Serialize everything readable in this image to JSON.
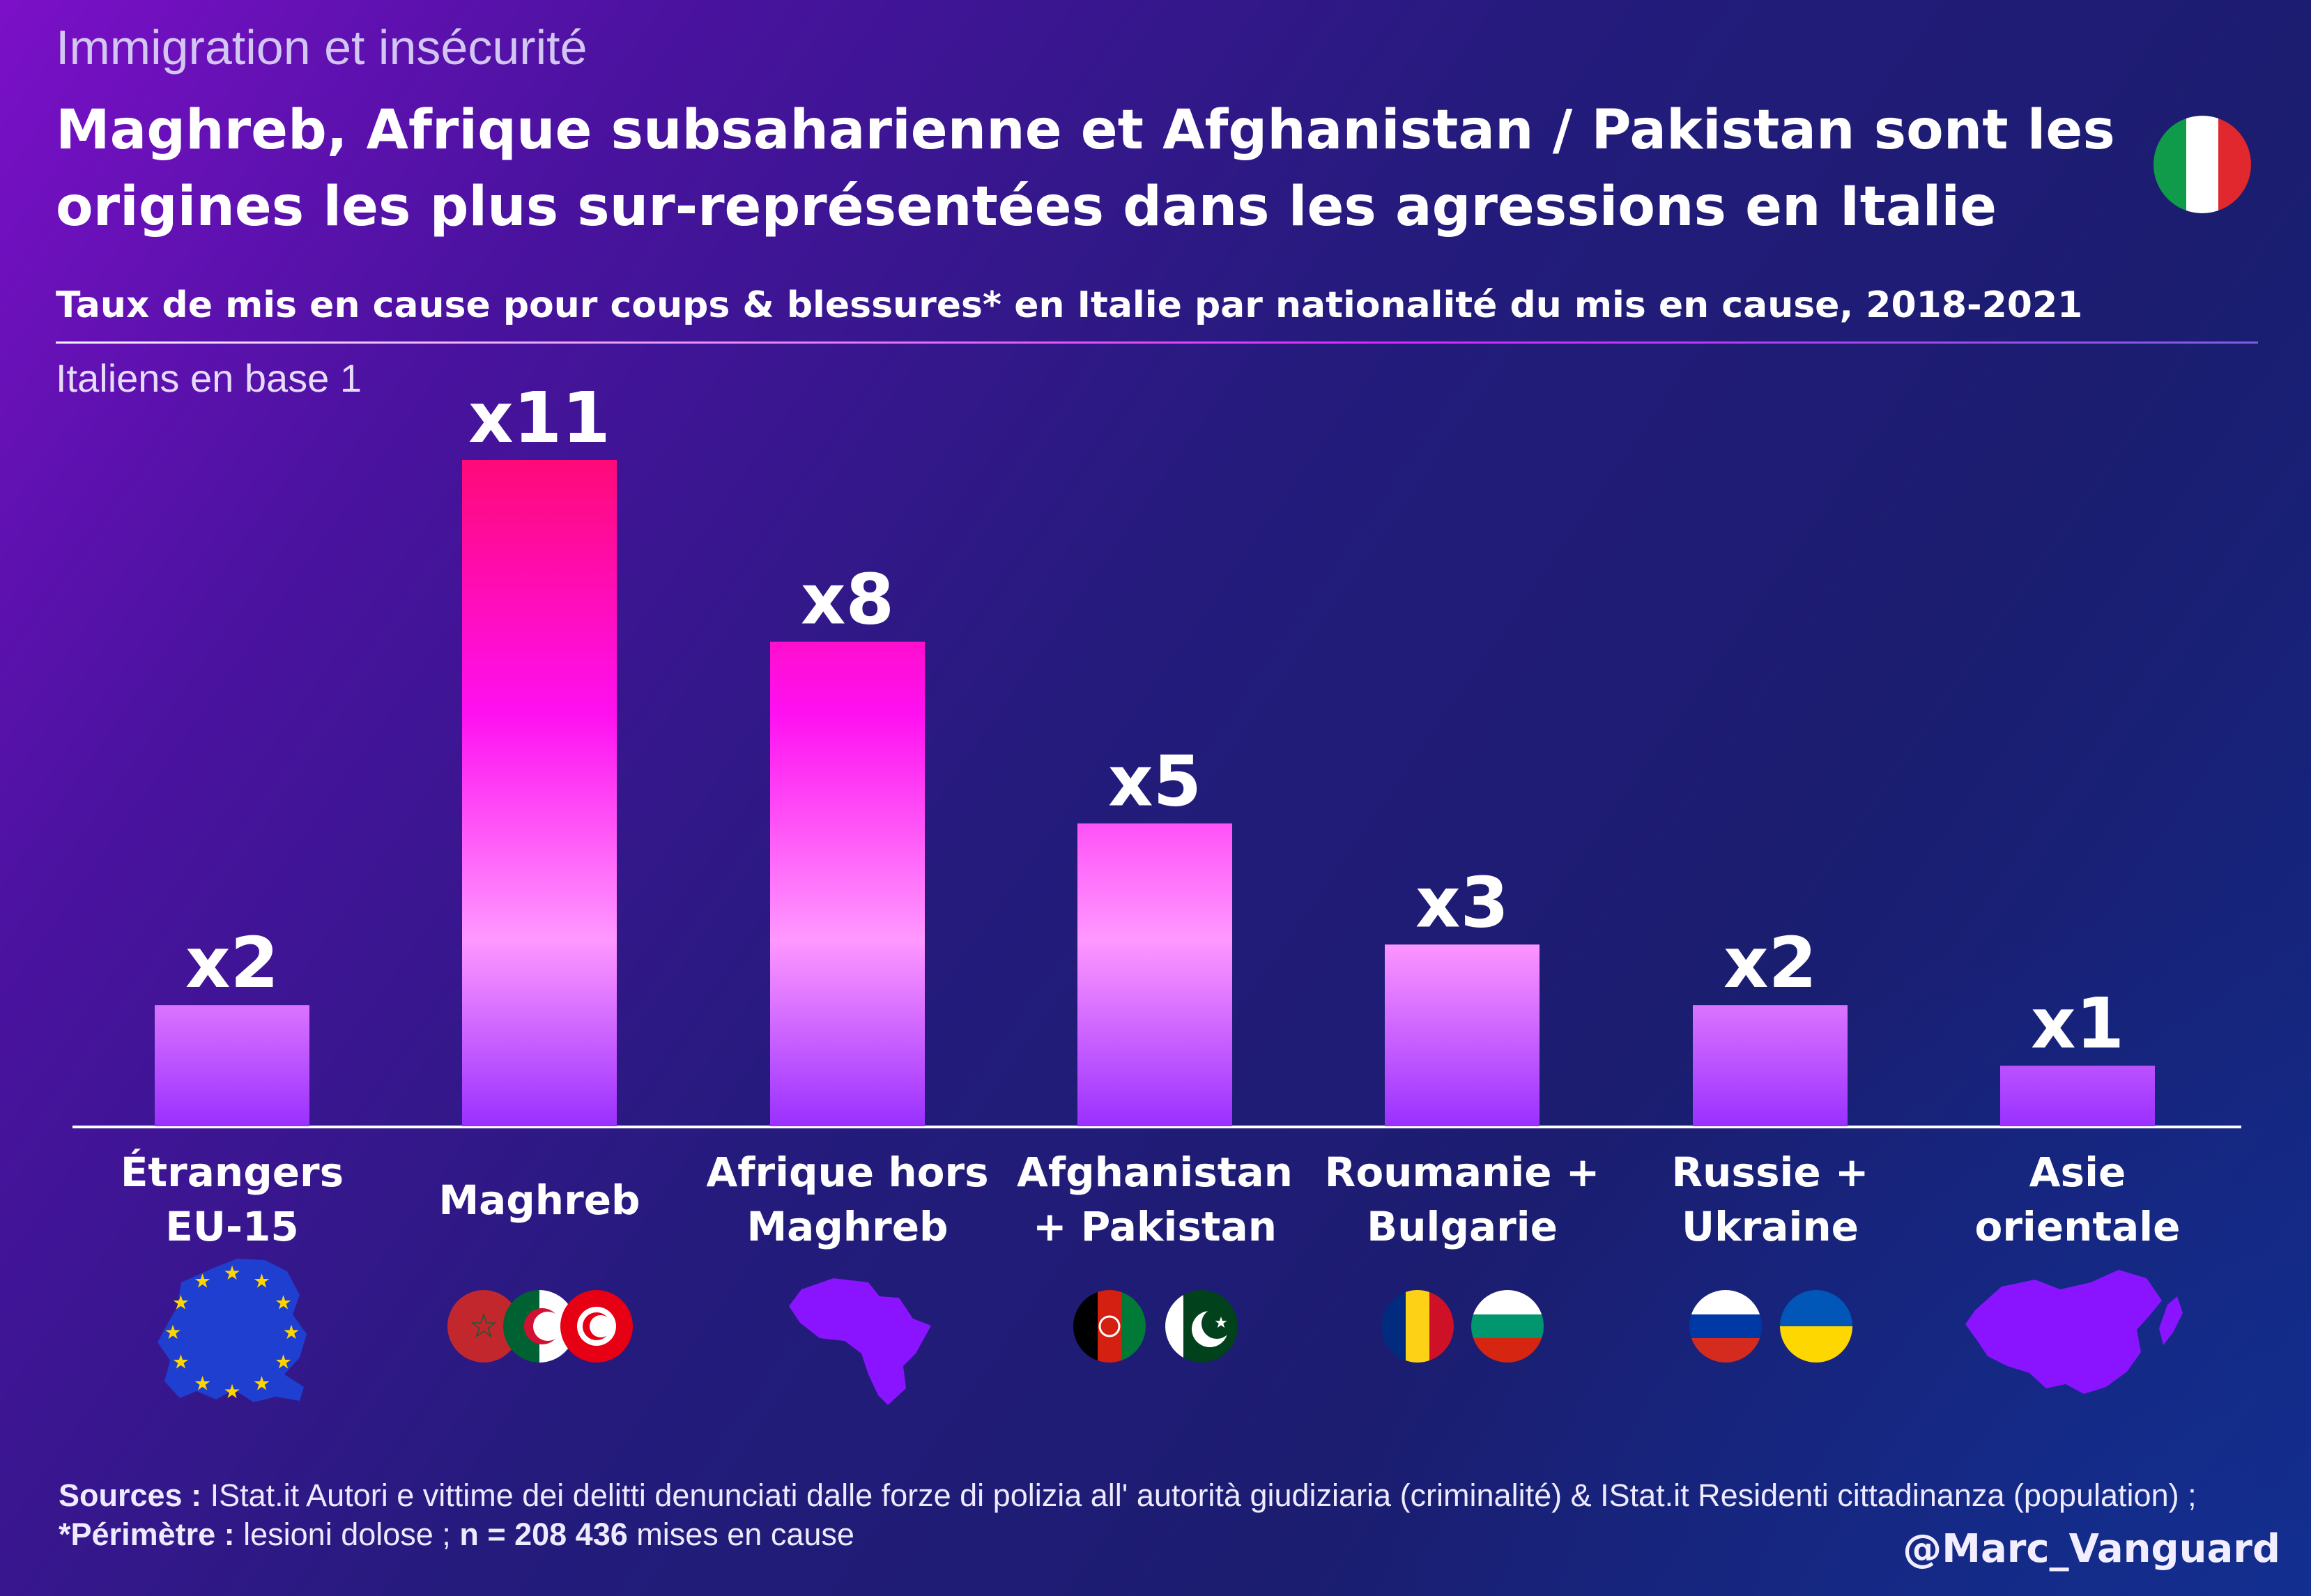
{
  "header": {
    "kicker": "Immigration et insécurité",
    "headline_line1": "Maghreb, Afrique subsaharienne et Afghanistan / Pakistan sont les",
    "headline_line2": "origines les plus sur-représentées dans les agressions en Italie",
    "subtitle": "Taux de mis en cause pour coups & blessures* en Italie par nationalité du mis en cause, 2018-2021",
    "base_note": "Italiens en base 1",
    "flag_icon": "italy-flag-icon"
  },
  "chart_data": {
    "type": "bar",
    "title": "Taux de mis en cause pour coups & blessures* en Italie par nationalité du mis en cause, 2018-2021",
    "ylabel": "Italiens en base 1",
    "categories": [
      [
        "Étrangers",
        "EU-15"
      ],
      [
        "Maghreb"
      ],
      [
        "Afrique hors",
        "Maghreb"
      ],
      [
        "Afghanistan",
        "+ Pakistan"
      ],
      [
        "Roumanie +",
        "Bulgarie"
      ],
      [
        "Russie +",
        "Ukraine"
      ],
      [
        "Asie",
        "orientale"
      ]
    ],
    "values": [
      2,
      11,
      8,
      5,
      3,
      2,
      1
    ],
    "value_labels": [
      "x2",
      "x11",
      "x8",
      "x5",
      "x3",
      "x2",
      "x1"
    ],
    "ylim": [
      0,
      11
    ],
    "grid": false,
    "legend": "none",
    "icons": [
      [
        "eu-map-icon"
      ],
      [
        "morocco-flag-icon",
        "algeria-flag-icon",
        "tunisia-flag-icon"
      ],
      [
        "africa-map-icon"
      ],
      [
        "afghanistan-flag-icon",
        "pakistan-flag-icon"
      ],
      [
        "romania-flag-icon",
        "bulgaria-flag-icon"
      ],
      [
        "russia-flag-icon",
        "ukraine-flag-icon"
      ],
      [
        "east-asia-map-icon"
      ]
    ],
    "colors": {
      "bar_top": "#ff0a78",
      "bar_mid": "#ff10f0",
      "bar_light": "#ff98ff",
      "bar_bottom": "#9a30ff",
      "map_fill": "#8a14ff",
      "eu_blue": "#1e3fd0",
      "eu_star": "#ffd500"
    }
  },
  "footer": {
    "sources_label": "Sources :",
    "sources_text": " IStat.it Autori e vittime dei delitti denunciati dalle forze di polizia all' autorità giudiziaria (criminalité) & IStat.it Residenti cittadinanza (population) ; ",
    "perimetre_label": "*Périmètre :",
    "perimetre_text": " lesioni dolose ; ",
    "n_label": "n = 208 436",
    "n_text": " mises en cause",
    "handle": "@Marc_Vanguard"
  }
}
